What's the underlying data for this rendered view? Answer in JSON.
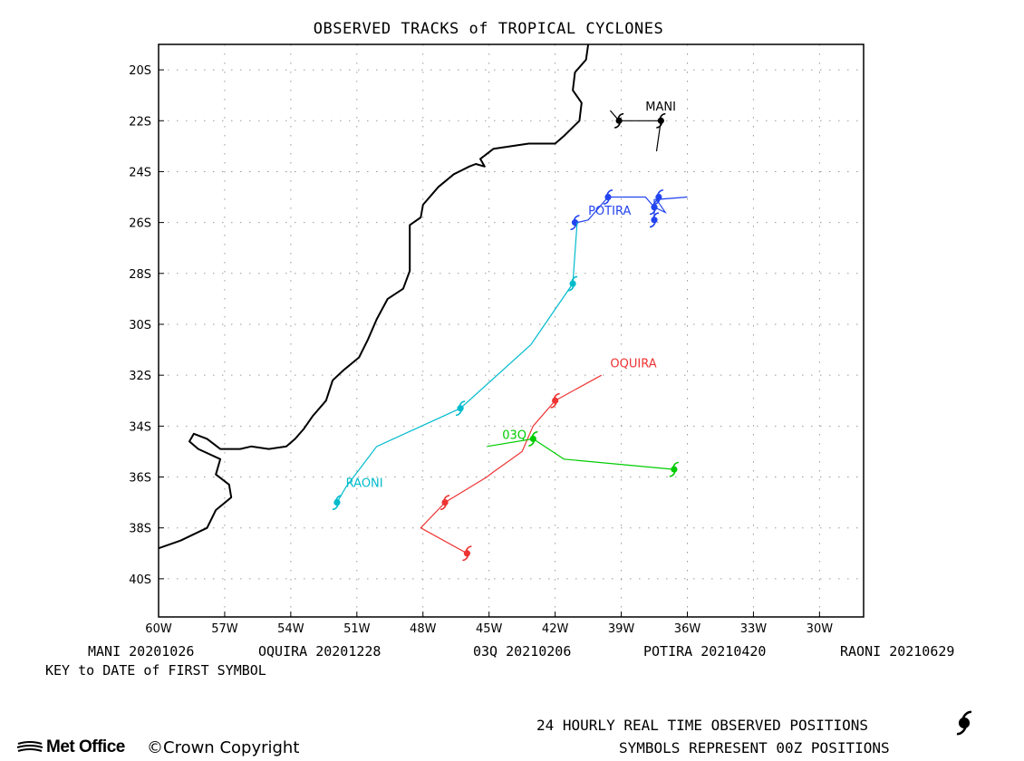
{
  "title": "OBSERVED TRACKS of TROPICAL CYCLONES",
  "map": {
    "lon_range": [
      -60,
      -28
    ],
    "lat_range": [
      -41.5,
      -19
    ],
    "lon_ticks": [
      {
        "value": -60,
        "label": "60W"
      },
      {
        "value": -57,
        "label": "57W"
      },
      {
        "value": -54,
        "label": "54W"
      },
      {
        "value": -51,
        "label": "51W"
      },
      {
        "value": -48,
        "label": "48W"
      },
      {
        "value": -45,
        "label": "45W"
      },
      {
        "value": -42,
        "label": "42W"
      },
      {
        "value": -39,
        "label": "39W"
      },
      {
        "value": -36,
        "label": "36W"
      },
      {
        "value": -33,
        "label": "33W"
      },
      {
        "value": -30,
        "label": "30W"
      }
    ],
    "lat_ticks": [
      {
        "value": -20,
        "label": "20S"
      },
      {
        "value": -22,
        "label": "22S"
      },
      {
        "value": -24,
        "label": "24S"
      },
      {
        "value": -26,
        "label": "26S"
      },
      {
        "value": -28,
        "label": "28S"
      },
      {
        "value": -30,
        "label": "30S"
      },
      {
        "value": -32,
        "label": "32S"
      },
      {
        "value": -34,
        "label": "34S"
      },
      {
        "value": -36,
        "label": "36S"
      },
      {
        "value": -38,
        "label": "38S"
      },
      {
        "value": -40,
        "label": "40S"
      }
    ],
    "coastline": [
      [
        -40.5,
        -19
      ],
      [
        -40.6,
        -19.6
      ],
      [
        -41.1,
        -20.1
      ],
      [
        -41.2,
        -20.8
      ],
      [
        -40.8,
        -21.3
      ],
      [
        -40.9,
        -22.0
      ],
      [
        -41.6,
        -22.6
      ],
      [
        -42.0,
        -22.9
      ],
      [
        -43.2,
        -22.9
      ],
      [
        -44.0,
        -23.0
      ],
      [
        -44.8,
        -23.1
      ],
      [
        -45.4,
        -23.5
      ],
      [
        -45.2,
        -23.8
      ],
      [
        -45.6,
        -23.7
      ],
      [
        -45.9,
        -23.8
      ],
      [
        -46.6,
        -24.1
      ],
      [
        -47.3,
        -24.6
      ],
      [
        -48.0,
        -25.3
      ],
      [
        -48.1,
        -25.8
      ],
      [
        -48.6,
        -26.1
      ],
      [
        -48.6,
        -26.8
      ],
      [
        -48.6,
        -27.4
      ],
      [
        -48.6,
        -27.9
      ],
      [
        -48.9,
        -28.6
      ],
      [
        -49.6,
        -29.0
      ],
      [
        -50.1,
        -29.8
      ],
      [
        -50.5,
        -30.6
      ],
      [
        -50.9,
        -31.3
      ],
      [
        -51.6,
        -31.8
      ],
      [
        -52.1,
        -32.2
      ],
      [
        -52.4,
        -33.0
      ],
      [
        -53.0,
        -33.6
      ],
      [
        -53.4,
        -34.1
      ],
      [
        -53.8,
        -34.5
      ],
      [
        -54.2,
        -34.8
      ],
      [
        -55.0,
        -34.9
      ],
      [
        -55.8,
        -34.8
      ],
      [
        -56.3,
        -34.9
      ],
      [
        -57.2,
        -34.9
      ],
      [
        -57.8,
        -34.5
      ],
      [
        -58.4,
        -34.3
      ],
      [
        -58.6,
        -34.6
      ],
      [
        -58.2,
        -34.9
      ],
      [
        -57.2,
        -35.3
      ],
      [
        -57.4,
        -35.9
      ],
      [
        -56.8,
        -36.3
      ],
      [
        -56.7,
        -36.8
      ],
      [
        -57.4,
        -37.3
      ],
      [
        -57.8,
        -38.0
      ],
      [
        -59.0,
        -38.5
      ],
      [
        -60.0,
        -38.8
      ]
    ],
    "storms": [
      {
        "name": "MANI",
        "color": "#000000",
        "label_pos": [
          -37.9,
          -21.6
        ],
        "track": [
          [
            -39.5,
            -21.6
          ],
          [
            -39.1,
            -22.0
          ],
          [
            -37.2,
            -22.0
          ],
          [
            -37.4,
            -23.2
          ]
        ],
        "positions": [
          [
            -37.2,
            -22.0
          ],
          [
            -39.1,
            -22.0
          ]
        ]
      },
      {
        "name": "OQUIRA",
        "color": "#ee3333",
        "label_pos": [
          -39.5,
          -31.7
        ],
        "track": [
          [
            -39.9,
            -32.0
          ],
          [
            -42.0,
            -33.0
          ],
          [
            -43.0,
            -34.0
          ],
          [
            -43.5,
            -35.0
          ],
          [
            -44.8,
            -35.8
          ],
          [
            -45.1,
            -36.0
          ],
          [
            -47.0,
            -37.0
          ],
          [
            -48.1,
            -38.0
          ],
          [
            -46.0,
            -39.0
          ]
        ],
        "positions": [
          [
            -42.0,
            -33.0
          ],
          [
            -47.0,
            -37.0
          ],
          [
            -46.0,
            -39.0
          ]
        ]
      },
      {
        "name": "03Q",
        "color": "#00cc00",
        "label_pos": [
          -44.4,
          -34.5
        ],
        "track": [
          [
            -45.1,
            -34.8
          ],
          [
            -43.0,
            -34.5
          ],
          [
            -41.6,
            -35.3
          ],
          [
            -36.6,
            -35.7
          ]
        ],
        "positions": [
          [
            -43.0,
            -34.5
          ],
          [
            -36.6,
            -35.7
          ]
        ]
      },
      {
        "name": "POTIRA",
        "color": "#2244ee",
        "label_pos": [
          -40.5,
          -25.7
        ],
        "track": [
          [
            -41.1,
            -26.0
          ],
          [
            -41.0,
            -26.0
          ],
          [
            -40.5,
            -25.9
          ],
          [
            -39.6,
            -25.0
          ],
          [
            -37.9,
            -25.0
          ],
          [
            -37.5,
            -25.4
          ],
          [
            -37.0,
            -25.6
          ],
          [
            -37.4,
            -25.1
          ],
          [
            -36.0,
            -25.0
          ],
          [
            -37.5,
            -25.1
          ],
          [
            -37.5,
            -25.9
          ]
        ],
        "positions": [
          [
            -41.1,
            -26.0
          ],
          [
            -39.6,
            -25.0
          ],
          [
            -37.3,
            -25.0
          ],
          [
            -37.5,
            -25.4
          ],
          [
            -37.5,
            -25.9
          ]
        ]
      },
      {
        "name": "RAONI",
        "color": "#00bbcc",
        "label_pos": [
          -51.5,
          -36.4
        ],
        "track": [
          [
            -51.9,
            -37.0
          ],
          [
            -51.5,
            -36.4
          ],
          [
            -50.1,
            -34.8
          ],
          [
            -46.3,
            -33.3
          ],
          [
            -43.1,
            -30.8
          ],
          [
            -41.2,
            -28.4
          ],
          [
            -41.0,
            -26.0
          ]
        ],
        "positions": [
          [
            -51.9,
            -37.0
          ],
          [
            -46.3,
            -33.3
          ],
          [
            -41.2,
            -28.4
          ]
        ]
      }
    ]
  },
  "key": {
    "items": [
      {
        "name": "MANI",
        "date": "20201026"
      },
      {
        "name": "OQUIRA",
        "date": "20201228"
      },
      {
        "name": "03Q",
        "date": "20210206"
      },
      {
        "name": "POTIRA",
        "date": "20210420"
      },
      {
        "name": "RAONI",
        "date": "20210629"
      }
    ],
    "caption": "KEY to DATE of FIRST SYMBOL"
  },
  "footer": {
    "line1": "24 HOURLY REAL TIME OBSERVED POSITIONS",
    "line2": "SYMBOLS REPRESENT 00Z POSITIONS",
    "brand": "Met Office",
    "copyright": "©Crown Copyright"
  },
  "icons": {
    "cyclone_symbol": "cyclone-icon",
    "brand_logo": "met-office-lines-icon"
  }
}
